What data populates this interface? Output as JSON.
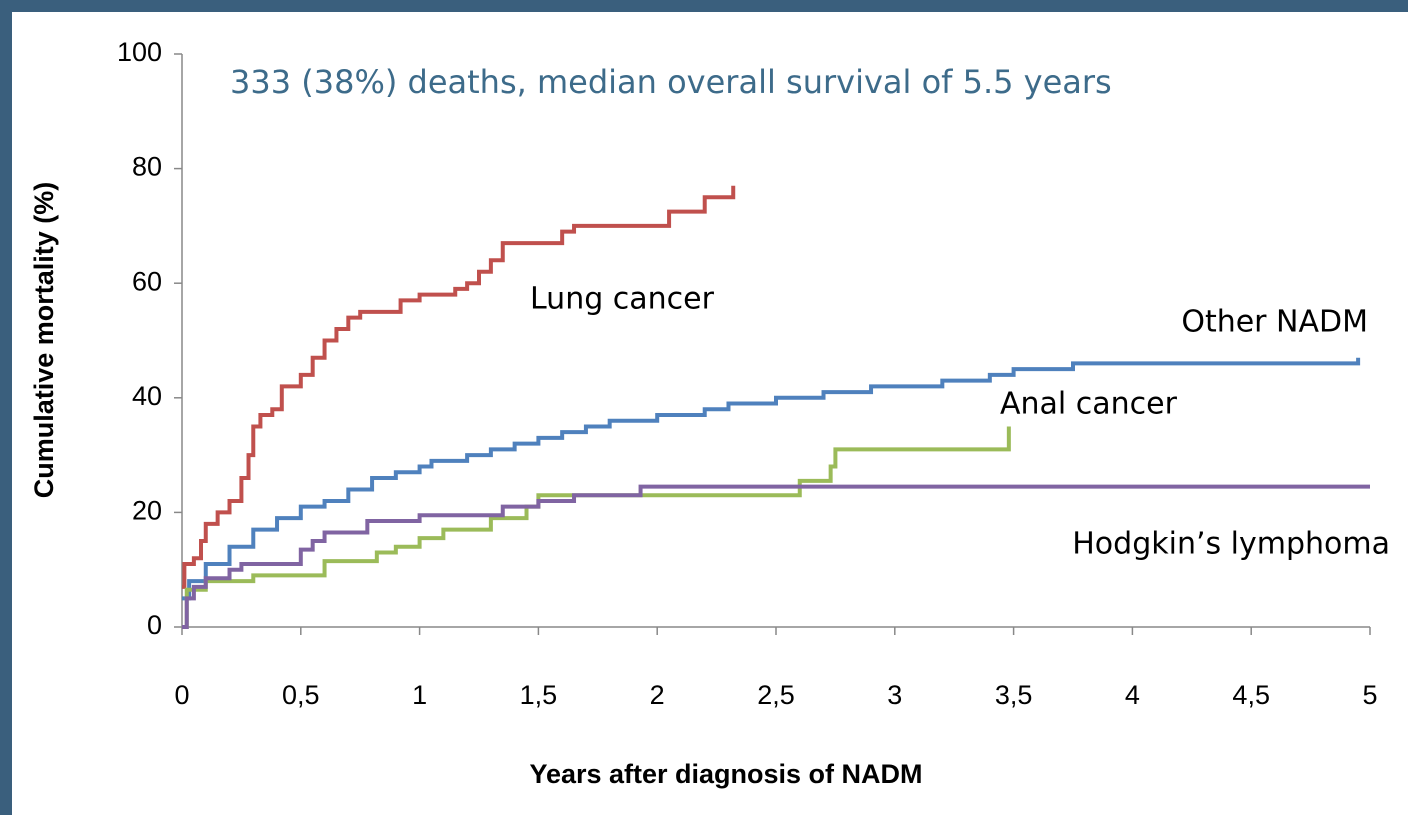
{
  "chart_data": {
    "type": "step",
    "annotation": "333 (38%) deaths, median overall survival of 5.5 years",
    "x_label": "Years after diagnosis of NADM",
    "y_label": "Cumulative mortality (%)",
    "xlim": [
      0,
      5
    ],
    "ylim": [
      0,
      100
    ],
    "xticks": [
      0,
      {
        "value": 0.5,
        "label": "0,5"
      },
      1,
      {
        "value": 1.5,
        "label": "1,5"
      },
      2,
      {
        "value": 2.5,
        "label": "2,5"
      },
      3,
      {
        "value": 3.5,
        "label": "3,5"
      },
      4,
      {
        "value": 4.5,
        "label": "4,5"
      },
      5
    ],
    "yticks": [
      0,
      20,
      40,
      60,
      80,
      100
    ],
    "series": [
      {
        "name": "Lung cancer",
        "color": "#c0504d",
        "x": [
          0,
          0.01,
          0.05,
          0.08,
          0.1,
          0.15,
          0.2,
          0.25,
          0.28,
          0.3,
          0.33,
          0.38,
          0.42,
          0.5,
          0.55,
          0.6,
          0.65,
          0.7,
          0.75,
          0.92,
          1.0,
          1.15,
          1.2,
          1.25,
          1.3,
          1.35,
          1.6,
          1.65,
          2.05,
          2.2,
          2.32
        ],
        "values": [
          7,
          11,
          12,
          15,
          18,
          20,
          22,
          26,
          30,
          35,
          37,
          38,
          42,
          44,
          47,
          50,
          52,
          54,
          55,
          57,
          58,
          59,
          60,
          62,
          64,
          67,
          69,
          70,
          72.5,
          75,
          77
        ]
      },
      {
        "name": "Other NADM",
        "color": "#4f81bd",
        "x": [
          0,
          0.03,
          0.1,
          0.2,
          0.3,
          0.4,
          0.5,
          0.6,
          0.7,
          0.8,
          0.9,
          1.0,
          1.05,
          1.2,
          1.3,
          1.4,
          1.5,
          1.6,
          1.7,
          1.8,
          2.0,
          2.2,
          2.3,
          2.5,
          2.7,
          2.9,
          3.2,
          3.4,
          3.5,
          3.75,
          4.95
        ],
        "values": [
          5,
          8,
          11,
          14,
          17,
          19,
          21,
          22,
          24,
          26,
          27,
          28,
          29,
          30,
          31,
          32,
          33,
          34,
          35,
          36,
          37,
          38,
          39,
          40,
          41,
          42,
          43,
          44,
          45,
          46,
          47
        ]
      },
      {
        "name": "Anal cancer",
        "color": "#9bbb59",
        "x": [
          0,
          0.02,
          0.1,
          0.3,
          0.6,
          0.82,
          0.9,
          1.0,
          1.1,
          1.3,
          1.45,
          1.5,
          2.6,
          2.73,
          2.75,
          3.48
        ],
        "values": [
          0,
          6.5,
          8,
          9,
          11.5,
          13,
          14,
          15.5,
          17,
          19,
          21,
          23,
          25.5,
          28,
          31,
          35
        ]
      },
      {
        "name": "Hodgkin’s lymphoma",
        "color": "#8064a2",
        "x": [
          0,
          0.02,
          0.05,
          0.1,
          0.2,
          0.25,
          0.5,
          0.55,
          0.6,
          0.78,
          1.0,
          1.35,
          1.5,
          1.65,
          1.93,
          5.0
        ],
        "values": [
          0,
          5,
          7,
          8.5,
          10,
          11,
          13.5,
          15,
          16.5,
          18.5,
          19.5,
          21,
          22,
          23,
          24.5,
          24.5
        ]
      }
    ]
  }
}
